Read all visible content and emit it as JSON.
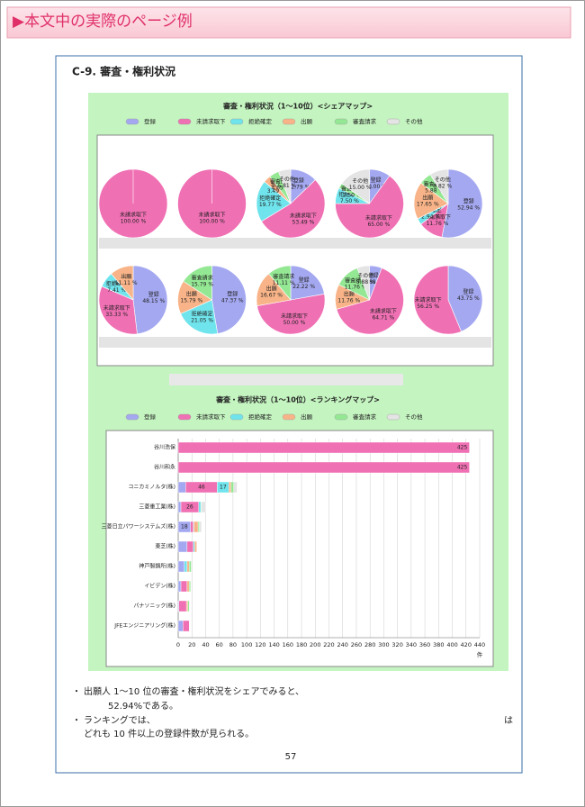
{
  "header": {
    "title": "▶本文中の実際のページ例"
  },
  "section": {
    "title": "C-9.  審査・権利状況"
  },
  "chart_data": [
    {
      "type": "pie",
      "title": "審査・権利状況（1～10位）<シェアマップ>",
      "categories": [
        "登録",
        "未請求取下",
        "拒絶確定",
        "出願",
        "審査請求",
        "その他"
      ],
      "colors": [
        "#a4a8f0",
        "#f070b4",
        "#70e4ec",
        "#f8b488",
        "#94e894",
        "#e4e4e4"
      ],
      "pies": [
        {
          "values": [
            null,
            100,
            null,
            null,
            null,
            null
          ],
          "value_labels": [
            null,
            "100.00 %",
            null,
            null,
            null,
            null
          ]
        },
        {
          "values": [
            null,
            100,
            null,
            null,
            null,
            null
          ],
          "value_labels": [
            null,
            "100.00 %",
            null,
            null,
            null,
            null
          ]
        },
        {
          "values": [
            12.79,
            53.49,
            19.77,
            3.49,
            4.65,
            5.81
          ],
          "value_labels": [
            "12.79 %",
            "53.49 %",
            "19.77 %",
            "3.49 %",
            "4.65 %",
            "5.81 %"
          ]
        },
        {
          "values": [
            10,
            65,
            7.5,
            null,
            2.5,
            15
          ],
          "value_labels": [
            "10.00 %",
            "65.00 %",
            "7.50 %",
            null,
            "2.50 %",
            "15.00 %"
          ]
        },
        {
          "values": [
            52.94,
            11.76,
            2.94,
            17.65,
            5.88,
            8.82
          ],
          "value_labels": [
            "52.94 %",
            "11.76 %",
            "2.94 %",
            "17.65 %",
            "5.88 %",
            "8.82 %"
          ]
        },
        {
          "values": [
            48.15,
            33.33,
            7.41,
            11.11,
            null,
            null
          ],
          "value_labels": [
            "48.15 %",
            "33.33 %",
            "7.41 %",
            "11.11 %",
            null,
            null
          ]
        },
        {
          "values": [
            47.37,
            null,
            21.05,
            15.79,
            15.79,
            null
          ],
          "value_labels": [
            "47.37 %",
            null,
            "21.05 %",
            "15.79 %",
            "15.79 %",
            null
          ]
        },
        {
          "values": [
            22.22,
            50,
            null,
            16.67,
            11.11,
            null
          ],
          "value_labels": [
            "22.22 %",
            "50.00 %",
            null,
            "16.67 %",
            "11.11 %",
            null
          ]
        },
        {
          "values": [
            5.88,
            64.71,
            null,
            11.76,
            11.76,
            5.88
          ],
          "value_labels": [
            "5.88 %",
            "64.71 %",
            null,
            "11.76 %",
            "11.76 %",
            "5.88 %"
          ]
        },
        {
          "values": [
            43.75,
            56.25,
            null,
            null,
            null,
            null
          ],
          "value_labels": [
            "43.75 %",
            "56.25 %",
            null,
            null,
            null,
            null
          ]
        }
      ]
    },
    {
      "type": "bar",
      "orientation": "horizontal",
      "stacked": true,
      "title": "審査・権利状況（1～10位）<ランキングマップ>",
      "categories": [
        "谷川浩保",
        "谷川和永",
        "コニカミノルタ(株)",
        "三菱重工業(株)",
        "三菱日立パワーシステムズ(株)",
        "東芝(株)",
        "神戸製鋼所(株)",
        "イビデン(株)",
        "パナソニック(株)",
        "JFEエンジニアリング(株)"
      ],
      "series": [
        {
          "name": "登録",
          "color": "#a4a8f0",
          "values": [
            null,
            null,
            11,
            4,
            18,
            13,
            9,
            4,
            1,
            7
          ]
        },
        {
          "name": "未請求取下",
          "color": "#f070b4",
          "values": [
            425,
            425,
            46,
            26,
            4,
            9,
            null,
            9,
            11,
            9
          ]
        },
        {
          "name": "拒絶確定",
          "color": "#70e4ec",
          "values": [
            null,
            null,
            17,
            3,
            1,
            2,
            4,
            null,
            null,
            null
          ]
        },
        {
          "name": "出願",
          "color": "#f8b488",
          "values": [
            null,
            null,
            3,
            null,
            6,
            3,
            3,
            3,
            2,
            null
          ]
        },
        {
          "name": "審査請求",
          "color": "#94e894",
          "values": [
            null,
            null,
            4,
            1,
            2,
            null,
            3,
            2,
            2,
            null
          ]
        },
        {
          "name": "その他",
          "color": "#e4e4e4",
          "values": [
            null,
            null,
            5,
            6,
            3,
            null,
            null,
            null,
            1,
            null
          ]
        }
      ],
      "xlim": [
        0,
        440
      ],
      "xticks": [
        0,
        20,
        40,
        60,
        80,
        100,
        120,
        140,
        160,
        180,
        200,
        220,
        240,
        260,
        280,
        300,
        320,
        340,
        360,
        380,
        400,
        420,
        440
      ],
      "xlabel": "件",
      "grid": true
    }
  ],
  "bullets": [
    {
      "marker": "・",
      "lines": [
        "出願人 1～10 位の審査・権利状況をシェアでみると、",
        "52.94%である。"
      ]
    },
    {
      "marker": "・",
      "lines": [
        "ランキングでは、",
        "は",
        "どれも 10 件以上の登録件数が見られる。"
      ]
    }
  ],
  "page_number": "57"
}
